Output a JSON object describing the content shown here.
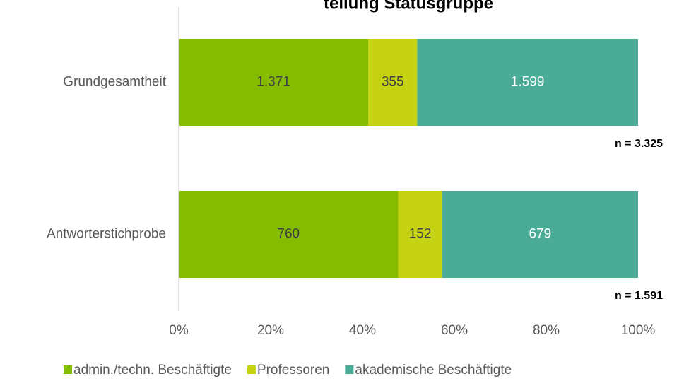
{
  "chart_data": {
    "type": "bar100h",
    "title": "teilung Statusgruppe",
    "categories": [
      "Grundgesamtheit",
      "Antworterstichprobe"
    ],
    "series": [
      {
        "name": "admin./techn. Beschäftigte",
        "color": "#86bc00",
        "label_color": "#404040",
        "values": [
          1371,
          760
        ],
        "value_labels": [
          "1.371",
          "760"
        ]
      },
      {
        "name": "Professoren",
        "color": "#c6d313",
        "label_color": "#404040",
        "values": [
          355,
          152
        ],
        "value_labels": [
          "355",
          "152"
        ]
      },
      {
        "name": "akademische Beschäftigte",
        "color": "#4aab97",
        "label_color": "#ffffff",
        "values": [
          1599,
          679
        ],
        "value_labels": [
          "1.599",
          "679"
        ]
      }
    ],
    "annotations": [
      "n = 3.325",
      "n = 1.591"
    ],
    "xlim": [
      0,
      100
    ],
    "xticks": [
      {
        "value": 0,
        "label": "0%"
      },
      {
        "value": 20,
        "label": "20%"
      },
      {
        "value": 40,
        "label": "40%"
      },
      {
        "value": 60,
        "label": "60%"
      },
      {
        "value": 80,
        "label": "80%"
      },
      {
        "value": 100,
        "label": "100%"
      }
    ],
    "legend": "bottom"
  }
}
